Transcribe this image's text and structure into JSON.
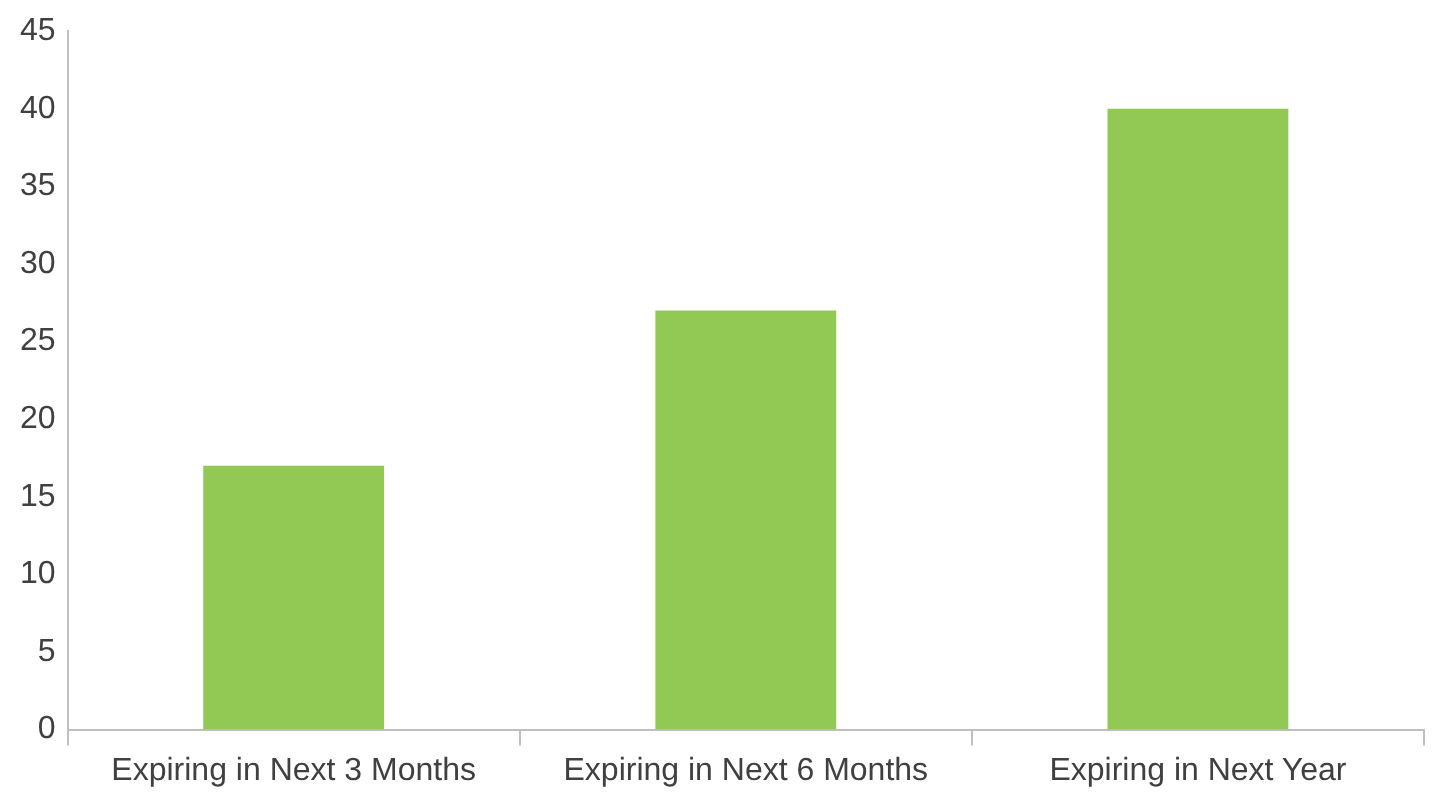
{
  "chart_data": {
    "type": "bar",
    "categories": [
      "Expiring in Next 3 Months",
      "Expiring in Next 6 Months",
      "Expiring in Next Year"
    ],
    "values": [
      17,
      27,
      40
    ],
    "color": "#92c955",
    "ylim": [
      0,
      45
    ],
    "yticks": [
      0,
      5,
      10,
      15,
      20,
      25,
      30,
      35,
      40,
      45
    ],
    "grid": false,
    "legend": false
  }
}
